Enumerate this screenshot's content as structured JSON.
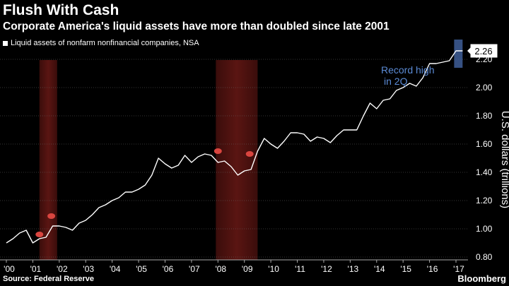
{
  "title": "Flush With Cash",
  "subtitle": "Corporate America's liquid assets have more than doubled since late 2001",
  "legend_label": "Liquid assets of nonfarm nonfinancial companies, NSA",
  "source": "Source: Federal Reserve",
  "brand": "Bloomberg",
  "colors": {
    "background": "#000000",
    "line": "#ffffff",
    "recession_band": "#5a1512",
    "recession_marker": "#d9453f",
    "highlight": "#3f5f9a",
    "annotation_text": "#5b8bd6"
  },
  "chart_data": {
    "type": "line",
    "title": "Flush With Cash",
    "subtitle": "Corporate America's liquid assets have more than doubled since late 2001",
    "ylabel": "U.S. dollars (trillions)",
    "ylim": [
      0.8,
      2.3
    ],
    "xlim": [
      2000.0,
      2017.55
    ],
    "yticks": [
      0.8,
      1.0,
      1.2,
      1.4,
      1.6,
      1.8,
      2.0,
      2.2
    ],
    "ytick_labels": [
      "0.80",
      "1.00",
      "1.20",
      "1.40",
      "1.60",
      "1.80",
      "2.00",
      "2.20"
    ],
    "xticks": [
      2000,
      2001,
      2002,
      2003,
      2004,
      2005,
      2006,
      2007,
      2008,
      2009,
      2010,
      2011,
      2012,
      2013,
      2014,
      2015,
      2016,
      2017
    ],
    "xtick_labels": [
      "'00",
      "'01",
      "'02",
      "'03",
      "'04",
      "'05",
      "'06",
      "'07",
      "'08",
      "'09",
      "'10",
      "'11",
      "'12",
      "'13",
      "'14",
      "'15",
      "'16",
      "'17"
    ],
    "grid": true,
    "legend_position": "top-left",
    "series": [
      {
        "name": "Liquid assets of nonfarm nonfinancial companies, NSA",
        "x": [
          2000.0,
          2000.25,
          2000.5,
          2000.75,
          2001.0,
          2001.25,
          2001.5,
          2001.75,
          2002.0,
          2002.25,
          2002.5,
          2002.75,
          2003.0,
          2003.25,
          2003.5,
          2003.75,
          2004.0,
          2004.25,
          2004.5,
          2004.75,
          2005.0,
          2005.25,
          2005.5,
          2005.75,
          2006.0,
          2006.25,
          2006.5,
          2006.75,
          2007.0,
          2007.25,
          2007.5,
          2007.75,
          2008.0,
          2008.25,
          2008.5,
          2008.75,
          2009.0,
          2009.25,
          2009.5,
          2009.75,
          2010.0,
          2010.25,
          2010.5,
          2010.75,
          2011.0,
          2011.25,
          2011.5,
          2011.75,
          2012.0,
          2012.25,
          2012.5,
          2012.75,
          2013.0,
          2013.25,
          2013.5,
          2013.75,
          2014.0,
          2014.25,
          2014.5,
          2014.75,
          2015.0,
          2015.25,
          2015.5,
          2015.75,
          2016.0,
          2016.25,
          2016.5,
          2016.75,
          2017.0,
          2017.25
        ],
        "y": [
          0.9,
          0.93,
          0.97,
          0.99,
          0.9,
          0.93,
          0.94,
          1.02,
          1.02,
          1.01,
          0.99,
          1.04,
          1.06,
          1.1,
          1.15,
          1.17,
          1.2,
          1.22,
          1.26,
          1.26,
          1.28,
          1.31,
          1.38,
          1.5,
          1.46,
          1.43,
          1.45,
          1.52,
          1.47,
          1.51,
          1.53,
          1.52,
          1.47,
          1.48,
          1.44,
          1.38,
          1.41,
          1.42,
          1.55,
          1.64,
          1.6,
          1.57,
          1.62,
          1.68,
          1.68,
          1.67,
          1.62,
          1.65,
          1.64,
          1.61,
          1.66,
          1.7,
          1.7,
          1.7,
          1.8,
          1.89,
          1.85,
          1.91,
          1.92,
          1.98,
          2.0,
          2.03,
          2.01,
          2.07,
          2.17,
          2.17,
          2.18,
          2.19,
          2.26,
          2.26
        ]
      }
    ],
    "recessions": [
      {
        "start": 2001.25,
        "end": 2001.92
      },
      {
        "start": 2007.92,
        "end": 2009.5
      }
    ],
    "annotations": [
      {
        "text": "Record high",
        "line2": "in 2Q",
        "x": 2017.25,
        "y": 2.26
      },
      {
        "text": "2.26",
        "x": 2017.25,
        "y": 2.26
      }
    ]
  }
}
